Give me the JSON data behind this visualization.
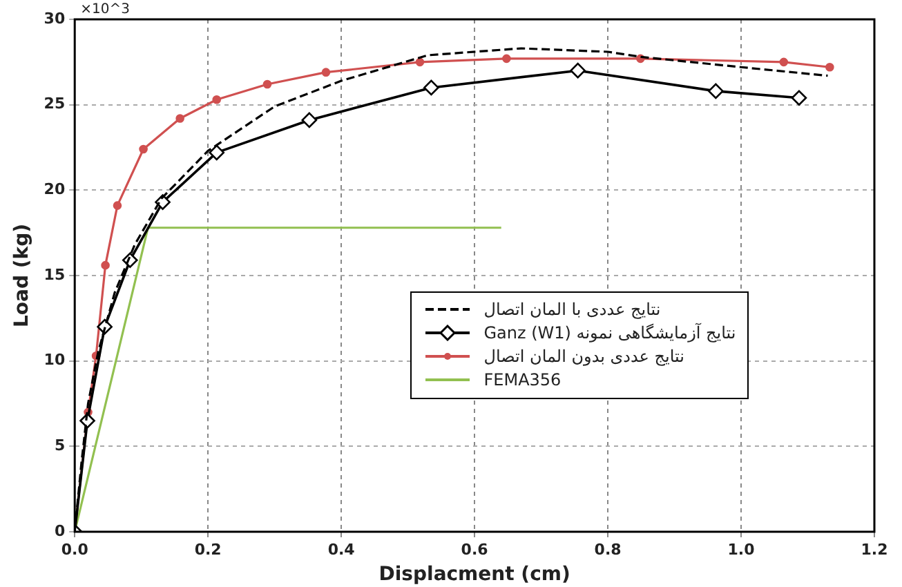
{
  "chart_data": {
    "type": "line",
    "xlabel": "Displacment (cm)",
    "ylabel": "Load (kg)",
    "annotations": [
      "×10^3"
    ],
    "xlim": [
      0,
      1.2
    ],
    "xticks": [
      {
        "value": 0,
        "label": "0.0"
      },
      0.2,
      0.4,
      0.6,
      0.8,
      {
        "value": 1,
        "label": "1.0"
      },
      1.2
    ],
    "ylim": [
      0,
      30
    ],
    "yticks": [
      0,
      5,
      10,
      15,
      20,
      25,
      30
    ],
    "grid": true,
    "legend": "right",
    "series": [
      {
        "name": "نتایج عددی با المان اتصال",
        "color": "#000000",
        "line_style": "dashed",
        "marker": "none",
        "x": [
          0,
          0.01,
          0.02,
          0.035,
          0.06,
          0.09,
          0.13,
          0.2,
          0.3,
          0.4,
          0.53,
          0.67,
          0.8,
          0.85,
          1.0,
          1.13
        ],
        "values": [
          0,
          4,
          7.5,
          10.5,
          14,
          16.8,
          19.5,
          22.3,
          24.9,
          26.4,
          27.9,
          28.3,
          28.1,
          27.8,
          27.2,
          26.7
        ]
      },
      {
        "name": "نتایج آزمایشگاهی نمونه Ganz (W1)",
        "color": "#000000",
        "line_style": "solid",
        "marker": "diamond",
        "x": [
          0,
          0.019,
          0.045,
          0.083,
          0.132,
          0.213,
          0.352,
          0.535,
          0.755,
          0.962,
          1.087
        ],
        "values": [
          0,
          6.5,
          12,
          15.9,
          19.3,
          22.2,
          24.1,
          26,
          27,
          25.8,
          25.4
        ]
      },
      {
        "name": "نتایج عددی بدون المان اتصال",
        "color": "#d05050",
        "line_style": "solid",
        "marker": "circle",
        "x": [
          0,
          0.02,
          0.032,
          0.046,
          0.064,
          0.103,
          0.158,
          0.213,
          0.289,
          0.377,
          0.518,
          0.648,
          0.849,
          1.064,
          1.133
        ],
        "values": [
          0,
          7,
          10.3,
          15.6,
          19.1,
          22.4,
          24.2,
          25.3,
          26.2,
          26.9,
          27.5,
          27.7,
          27.7,
          27.5,
          27.2
        ]
      },
      {
        "name": "FEMA356",
        "color": "#92c050",
        "line_style": "solid",
        "marker": "none",
        "x": [
          0,
          0.11,
          0.64
        ],
        "values": [
          0,
          17.8,
          17.8
        ]
      }
    ]
  }
}
